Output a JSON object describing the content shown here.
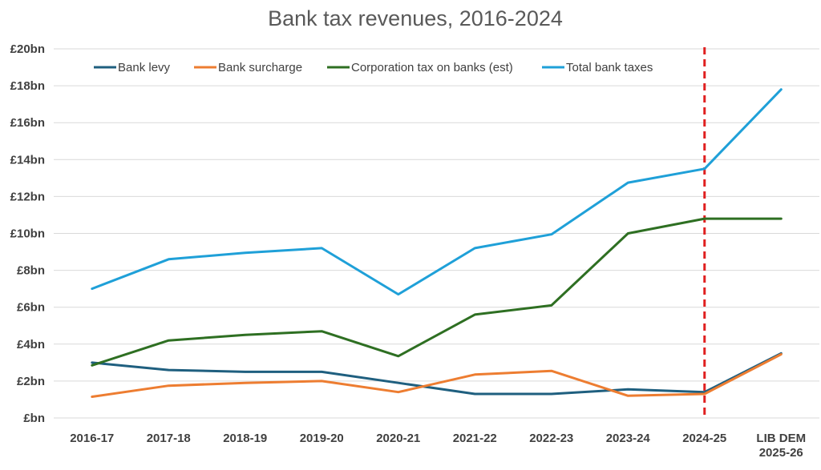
{
  "chart_data": {
    "type": "line",
    "title": "Bank tax revenues, 2016-2024",
    "xlabel": "",
    "ylabel": "",
    "categories": [
      [
        "2016-17"
      ],
      [
        "2017-18"
      ],
      [
        "2018-19"
      ],
      [
        "2019-20"
      ],
      [
        "2020-21"
      ],
      [
        "2021-22"
      ],
      [
        "2022-23"
      ],
      [
        "2023-24"
      ],
      [
        "2024-25"
      ],
      [
        "LIB DEM",
        "2025-26"
      ]
    ],
    "ylim": [
      0,
      20
    ],
    "yticks": [
      {
        "value": 0,
        "label": "£bn"
      },
      {
        "value": 2,
        "label": "£2bn"
      },
      {
        "value": 4,
        "label": "£4bn"
      },
      {
        "value": 6,
        "label": "£6bn"
      },
      {
        "value": 8,
        "label": "£8bn"
      },
      {
        "value": 10,
        "label": "£10bn"
      },
      {
        "value": 12,
        "label": "£12bn"
      },
      {
        "value": 14,
        "label": "£14bn"
      },
      {
        "value": 16,
        "label": "£16bn"
      },
      {
        "value": 18,
        "label": "£18bn"
      },
      {
        "value": 20,
        "label": "£20bn"
      }
    ],
    "grid": true,
    "legend_position": "top",
    "series": [
      {
        "name": "Bank levy",
        "color": "#1f5f7f",
        "values": [
          3.0,
          2.6,
          2.5,
          2.5,
          1.9,
          1.3,
          1.3,
          1.55,
          1.4,
          3.5
        ]
      },
      {
        "name": "Bank surcharge",
        "color": "#ed7d31",
        "values": [
          1.15,
          1.75,
          1.9,
          2.0,
          1.4,
          2.35,
          2.55,
          1.2,
          1.3,
          3.45
        ]
      },
      {
        "name": "Corporation tax on banks (est)",
        "color": "#2e6f22",
        "values": [
          2.85,
          4.2,
          4.5,
          4.7,
          3.35,
          5.6,
          6.1,
          10.0,
          10.8,
          10.8
        ]
      },
      {
        "name": "Total bank taxes",
        "color": "#1fa0d8",
        "values": [
          7.0,
          8.6,
          8.95,
          9.2,
          6.7,
          9.2,
          9.95,
          12.75,
          13.5,
          17.8
        ]
      }
    ],
    "annotations": [
      {
        "type": "vertical-dashed-line",
        "at_category": "2024-25",
        "color": "#e02020"
      }
    ]
  }
}
